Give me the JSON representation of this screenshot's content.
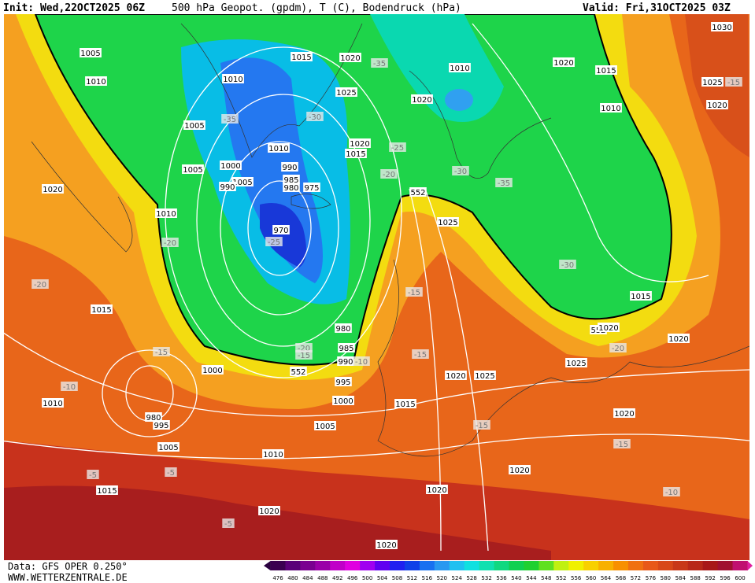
{
  "header": {
    "init": "Init: Wed,22OCT2025 06Z",
    "title": "500 hPa Geopot. (gpdm), T (C), Bodendruck (hPa)",
    "valid": "Valid: Fri,31OCT2025 03Z"
  },
  "footer": {
    "data": "Data: GFS OPER 0.250°",
    "site": "WWW.WETTERZENTRALE.DE"
  },
  "colorbar": {
    "levels": [
      476,
      480,
      484,
      488,
      492,
      496,
      500,
      504,
      508,
      512,
      516,
      520,
      524,
      528,
      532,
      536,
      540,
      544,
      548,
      552,
      556,
      560,
      564,
      568,
      572,
      576,
      580,
      584,
      588,
      592,
      596,
      600
    ]
  },
  "contour_labels": [
    "1005",
    "1010",
    "1015",
    "1010",
    "1020",
    "-35",
    "1010",
    "1020",
    "1030",
    "1015",
    "1025",
    "-15",
    "1020",
    "1010",
    "1020",
    "1025",
    "-30",
    "-35",
    "1005",
    "1020",
    "1015",
    "-25",
    "1010",
    "990",
    "1000",
    "1005",
    "1005",
    "985",
    "980",
    "975",
    "990",
    "-20",
    "-30",
    "-35",
    "552",
    "1020",
    "1010",
    "1025",
    "-20",
    "970",
    "-25",
    "-20",
    "-30",
    "1015",
    "1015",
    "980",
    "-15",
    "552",
    "1020",
    "1020",
    "-20",
    "-20",
    "-15",
    "985",
    "990",
    "-10",
    "552",
    "-15",
    "-15",
    "1000",
    "995",
    "1020",
    "1025",
    "1025",
    "-10",
    "1010",
    "1000",
    "1015",
    "980",
    "995",
    "1005",
    "-15",
    "1020",
    "1005",
    "1010",
    "-15",
    "-5",
    "-5",
    "1020",
    "1015",
    "1020",
    "-10",
    "1020",
    "-5",
    "1020"
  ]
}
